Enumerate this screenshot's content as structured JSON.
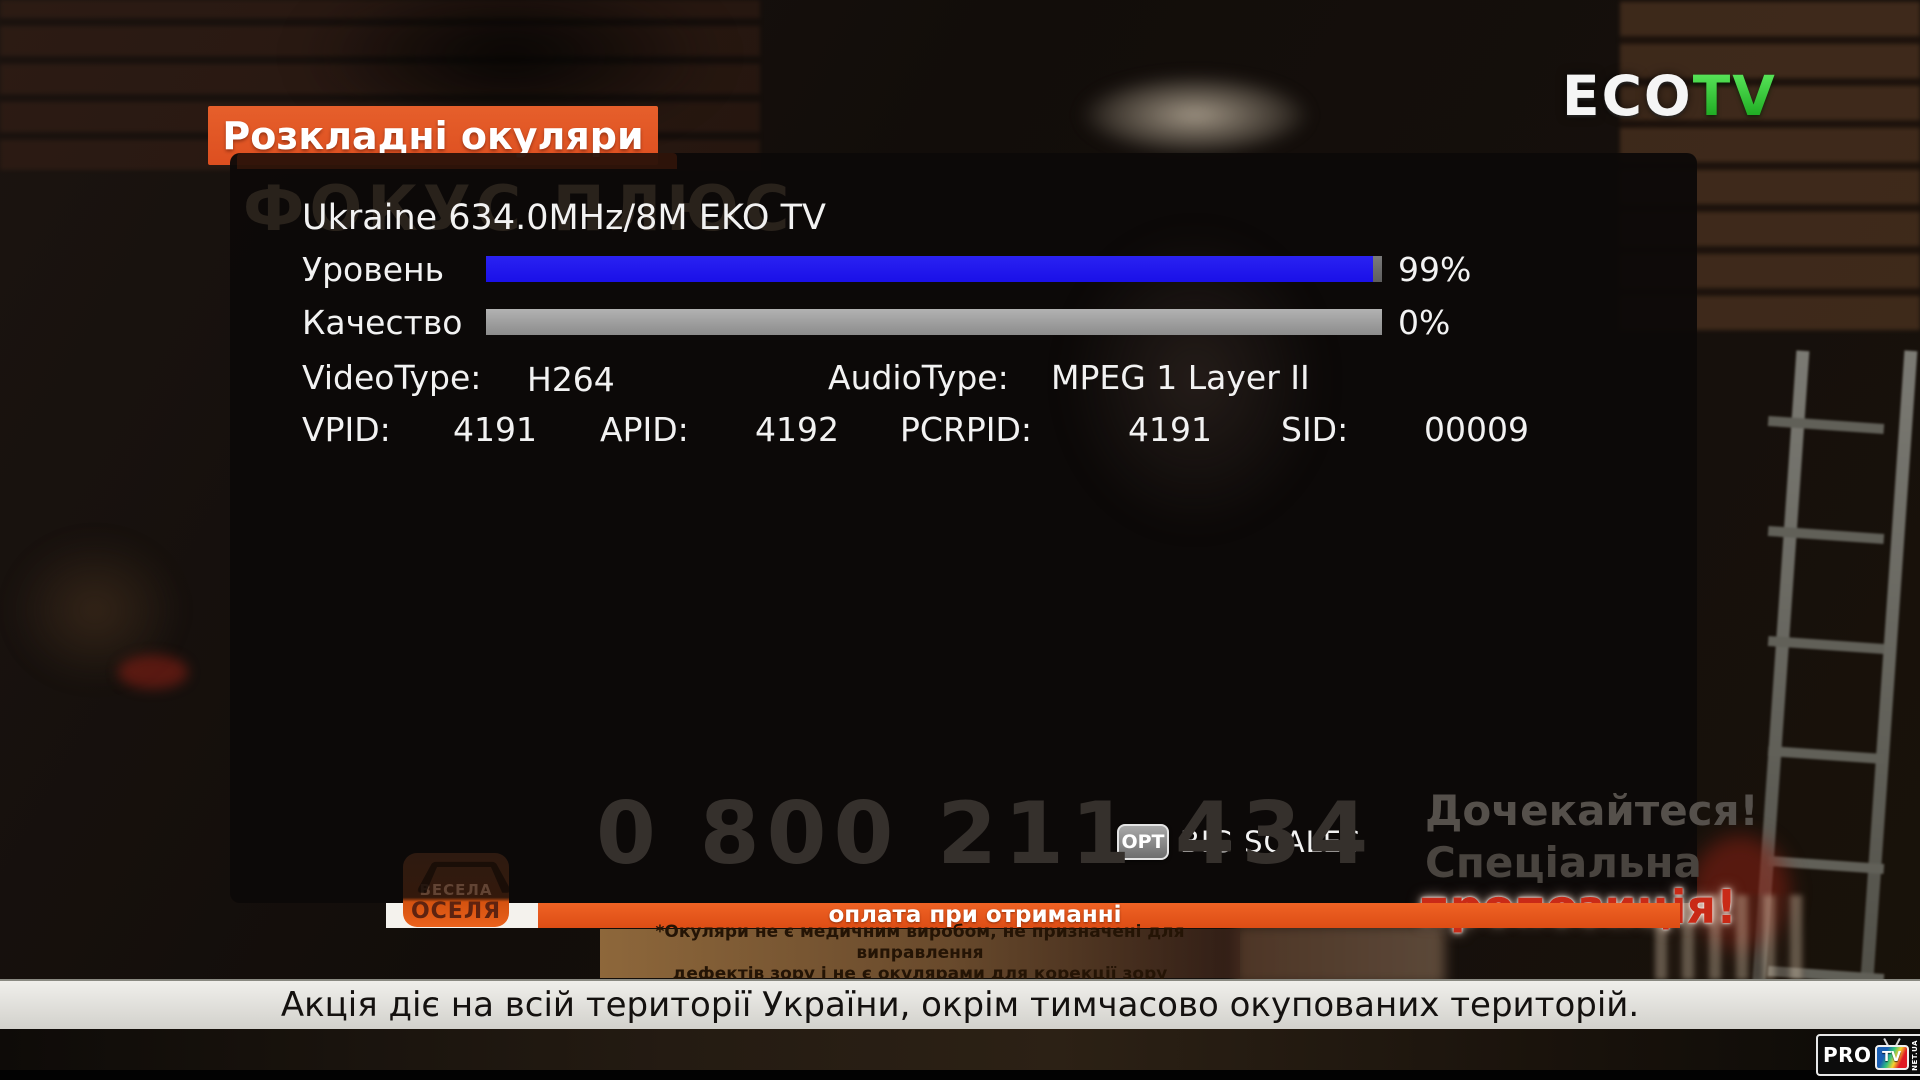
{
  "signal_panel": {
    "title": "Ukraine 634.0MHz/8M EKO TV",
    "level": {
      "label": "Уровень",
      "value": "99%",
      "percent": 99
    },
    "quality": {
      "label": "Качество",
      "value": "0%",
      "percent": 0
    },
    "video_type": {
      "label": "VideoType:",
      "value": "H264"
    },
    "audio_type": {
      "label": "AudioType:",
      "value": "MPEG 1 Layer II"
    },
    "pids": [
      {
        "label": "VPID:",
        "value": "4191"
      },
      {
        "label": "APID:",
        "value": "4192"
      },
      {
        "label": "PCRPID:",
        "value": "4191"
      },
      {
        "label": "SID:",
        "value": "00009"
      }
    ],
    "hint": {
      "key": "OPT",
      "label": "BIG SCALES"
    },
    "colors": {
      "level_bar": "#1f16f0",
      "quality_bar": "#9c9c9c",
      "panel_bg": "#0d0908"
    }
  },
  "broadcast": {
    "ad_banner": "Розкладні окуляри",
    "ad_brand_dimmed": "ФОКУС ПЛЮС",
    "channel_logo": {
      "eco": "ECO",
      "tv": "TV",
      "tv_color": "#1db51d"
    },
    "phone_number": "0 800 211 434",
    "promo_right": {
      "line1": "Дочекайтеся!",
      "line2": "Спеціальна",
      "line3": "пропозиція!"
    },
    "home_logo": {
      "line1": "ВЕСЕЛА",
      "line2": "ОСЕЛЯ"
    },
    "payment_strip": "оплата при отриманні",
    "disclaimer_line1": "*Окуляри не є медичним виробом, не призначені для виправлення",
    "disclaimer_line2": "дефектів зору і не є окулярами для корекції зору",
    "subtitle": "Акція діє на всій території України, окрім тимчасово окупованих територій.",
    "watermark": {
      "pro": "PRO",
      "tv": "TV",
      "net": "NET.UA"
    }
  }
}
